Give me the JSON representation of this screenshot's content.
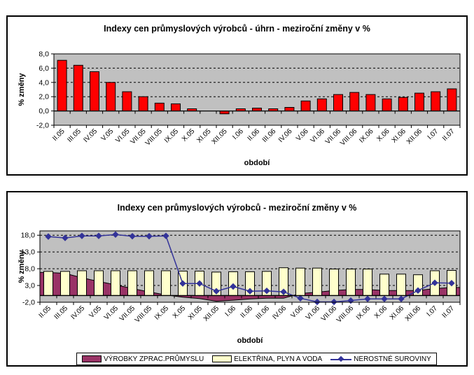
{
  "page_background": "#FFFFFF",
  "chart_data": [
    {
      "type": "bar",
      "title": "Indexy cen průmyslových výrobců - úhrn - meziroční změny v %",
      "ylabel": "% změny",
      "xlabel": "období",
      "plot_bg": "#C0C0C0",
      "grid": "dashed",
      "legend_position": "none",
      "ylim": [
        -2,
        8
      ],
      "yticks": [
        {
          "value": 8,
          "label": "8,0"
        },
        {
          "value": 6,
          "label": "6,0"
        },
        {
          "value": 4,
          "label": "4,0"
        },
        {
          "value": 2,
          "label": "2,0"
        },
        {
          "value": 0,
          "label": "0,0"
        },
        {
          "value": -2,
          "label": "-2,0"
        }
      ],
      "categories": [
        "II.05",
        "III.05",
        "IV.05",
        "V.05",
        "VI.05",
        "VII.05",
        "VIII.05",
        "IX.05",
        "X.05",
        "XI.05",
        "XII.05",
        "I.06",
        "II.06",
        "III.06",
        "IV.06",
        "V.06",
        "VI.06",
        "VII.06",
        "VIII.06",
        "IX.06",
        "X.06",
        "XI.06",
        "XII.06",
        "I.07",
        "II.07"
      ],
      "series": [
        {
          "name": "úhrn",
          "type": "bar",
          "color": "#FF0000",
          "values": [
            7.1,
            6.4,
            5.5,
            4.0,
            2.7,
            2.0,
            1.1,
            1.0,
            0.3,
            0.0,
            -0.4,
            0.3,
            0.4,
            0.3,
            0.5,
            1.4,
            1.7,
            2.3,
            2.6,
            2.3,
            1.7,
            1.9,
            2.5,
            2.7,
            3.1
          ]
        }
      ]
    },
    {
      "type": "combo",
      "title": "Indexy cen průmyslových výrobců - meziroční změny v %",
      "ylabel": "% změny",
      "xlabel": "období",
      "plot_bg": "#C0C0C0",
      "grid": "dashed",
      "legend_position": "bottom",
      "ylim": [
        -2,
        19.3
      ],
      "yticks": [
        {
          "value": 18,
          "label": "18,0"
        },
        {
          "value": 13,
          "label": "13,0"
        },
        {
          "value": 8,
          "label": "8,0"
        },
        {
          "value": 3,
          "label": "3,0"
        },
        {
          "value": -2,
          "label": "-2,0"
        }
      ],
      "categories": [
        "II.05",
        "III.05",
        "IV.05",
        "V.05",
        "VI.05",
        "VII.05",
        "VIII.05",
        "IX.05",
        "X.05",
        "XI.05",
        "XII.05",
        "I.06",
        "II.06",
        "III.06",
        "IV.06",
        "V.06",
        "VI.06",
        "VII.06",
        "VIII.06",
        "IX.06",
        "X.06",
        "XI.06",
        "XII.06",
        "I.07",
        "II.07"
      ],
      "series": [
        {
          "name": "VÝROBKY ZPRAC.PRŮMYSLU",
          "type": "area",
          "color": "#993366",
          "values": [
            6.9,
            6.6,
            5.3,
            4.2,
            3.2,
            2.1,
            1.1,
            0.2,
            -0.5,
            -0.9,
            -1.7,
            -1.4,
            -1.0,
            -0.8,
            -0.8,
            0.6,
            1.0,
            1.5,
            1.8,
            1.8,
            1.5,
            1.5,
            1.5,
            2.1,
            2.4
          ]
        },
        {
          "name": "ELEKTŘINA, PLYN A VODA",
          "type": "bar",
          "color": "#FFFFCC",
          "values": [
            7.2,
            7.2,
            7.4,
            7.4,
            7.4,
            7.4,
            7.4,
            7.4,
            7.3,
            7.3,
            7.0,
            7.1,
            7.1,
            7.2,
            8.3,
            8.2,
            8.2,
            7.9,
            7.9,
            7.9,
            6.4,
            6.4,
            6.2,
            7.4,
            7.5
          ]
        },
        {
          "name": "NEROSTNÉ SUROVINY",
          "type": "line",
          "color": "#333399",
          "marker": "diamond",
          "values": [
            17.6,
            17.2,
            17.8,
            17.8,
            18.2,
            17.7,
            17.7,
            17.8,
            3.6,
            3.6,
            1.3,
            2.7,
            1.3,
            1.4,
            1.1,
            -0.8,
            -1.9,
            -1.9,
            -1.5,
            -1.0,
            -1.0,
            -1.0,
            1.5,
            3.8,
            3.7
          ]
        }
      ]
    }
  ]
}
